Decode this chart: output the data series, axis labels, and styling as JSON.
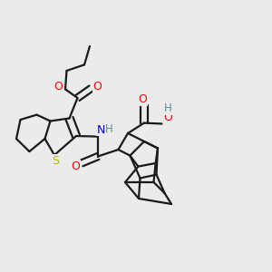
{
  "background_color": "#ebebeb",
  "bond_color": "#1a1a1a",
  "atom_colors": {
    "O": "#ff0000",
    "N": "#0000cd",
    "S": "#b8b800",
    "H_gray": "#5a9090",
    "C": "#1a1a1a"
  },
  "line_width": 1.6,
  "figsize": [
    3.0,
    3.0
  ],
  "dpi": 100
}
